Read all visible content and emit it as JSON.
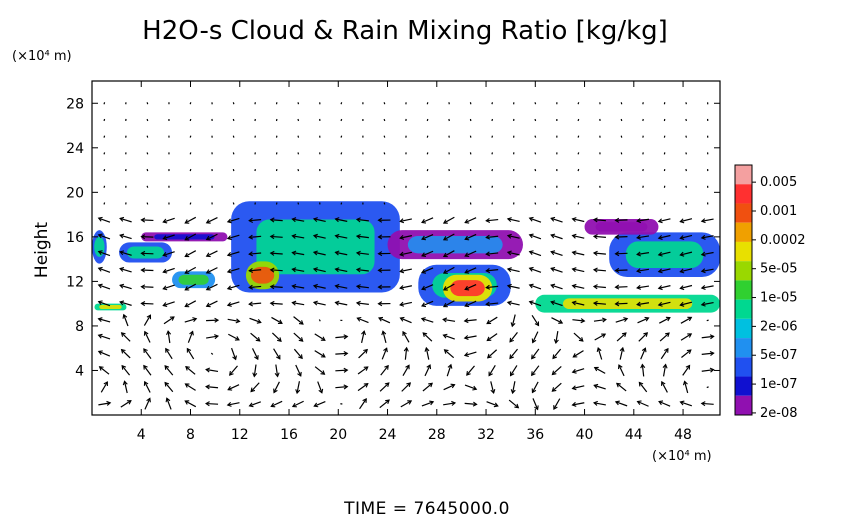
{
  "chart_data": {
    "type": "heatmap",
    "title": "H2O-s Cloud & Rain Mixing Ratio [kg/kg]",
    "ylabel": "Height",
    "x_unit": "(×10⁴ m)",
    "y_unit": "(×10⁴ m)",
    "xlim": [
      0,
      51
    ],
    "ylim": [
      0,
      30
    ],
    "x_ticks": [
      4,
      8,
      12,
      16,
      20,
      24,
      28,
      32,
      36,
      40,
      44,
      48
    ],
    "y_ticks": [
      4,
      8,
      12,
      16,
      20,
      24,
      28
    ],
    "time_label": "TIME  =  7645000.0",
    "colorbar": {
      "labels": [
        "0.005",
        "0.001",
        "0.0002",
        "5e-05",
        "1e-05",
        "2e-06",
        "5e-07",
        "1e-07",
        "2e-08"
      ],
      "colors": [
        "#f4a0a0",
        "#ff3030",
        "#f05010",
        "#f0a000",
        "#e8e000",
        "#9ad800",
        "#30d030",
        "#00d890",
        "#00c0e0",
        "#2090f0",
        "#2050f0",
        "#1010d0",
        "#9010b0"
      ]
    },
    "regions": [
      {
        "name": "left-edge-anvil",
        "x": [
          0,
          1.2
        ],
        "y": [
          13.6,
          16.6
        ],
        "level": 7
      },
      {
        "name": "small-cloud-2",
        "x": [
          2.2,
          6.5
        ],
        "y": [
          13.7,
          15.5
        ],
        "level": 7
      },
      {
        "name": "thin-layer-3",
        "x": [
          4,
          11
        ],
        "y": [
          15.6,
          16.4
        ],
        "level": 11
      },
      {
        "name": "small-cloud-8",
        "x": [
          6.5,
          10
        ],
        "y": [
          11.4,
          12.9
        ],
        "level": 6
      },
      {
        "name": "main-anvil",
        "x": [
          11.3,
          25
        ],
        "y": [
          11,
          19.2
        ],
        "level": 7
      },
      {
        "name": "core-13",
        "x": [
          12.5,
          15.2
        ],
        "y": [
          11.3,
          13.8
        ],
        "level": 2
      },
      {
        "name": "band-26",
        "x": [
          24,
          35
        ],
        "y": [
          14,
          16.6
        ],
        "level": 9
      },
      {
        "name": "core-30",
        "x": [
          26.5,
          34
        ],
        "y": [
          9.8,
          13.5
        ],
        "level": 7
      },
      {
        "name": "red-core-30",
        "x": [
          28.5,
          32.5
        ],
        "y": [
          10.2,
          12.6
        ],
        "level": 1
      },
      {
        "name": "right-cloud-45",
        "x": [
          42,
          51
        ],
        "y": [
          12.4,
          16.4
        ],
        "level": 7
      },
      {
        "name": "high-purple-44",
        "x": [
          40,
          46
        ],
        "y": [
          16.2,
          17.6
        ],
        "level": 12
      },
      {
        "name": "low-band-right",
        "x": [
          36,
          51
        ],
        "y": [
          9.2,
          10.8
        ],
        "level": 4
      },
      {
        "name": "low-left",
        "x": [
          0.2,
          2.8
        ],
        "y": [
          9.4,
          10
        ],
        "level": 4
      }
    ]
  }
}
